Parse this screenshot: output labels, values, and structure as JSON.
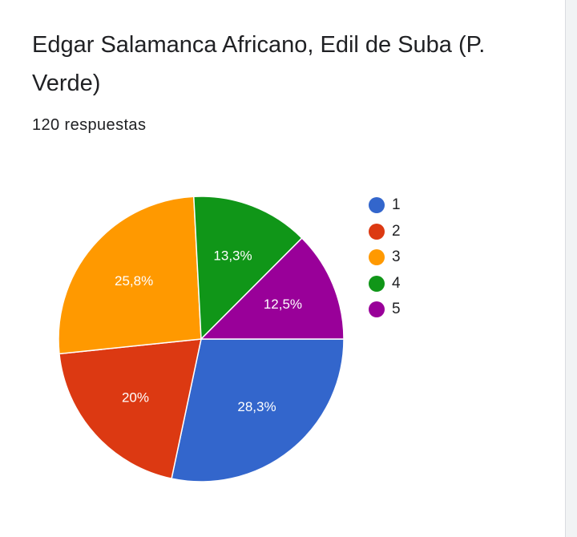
{
  "card": {
    "title": "Edgar Salamanca Africano, Edil de Suba (P. Verde)",
    "response_count": "120 respuestas"
  },
  "chart_data": {
    "type": "pie",
    "title": "Edgar Salamanca Africano, Edil de Suba (P. Verde)",
    "categories": [
      "1",
      "2",
      "3",
      "4",
      "5"
    ],
    "values": [
      28.3,
      20,
      25.8,
      13.3,
      12.5
    ],
    "labels": [
      "28,3%",
      "20%",
      "25,8%",
      "13,3%",
      "12,5%"
    ],
    "colors": [
      "#3366cc",
      "#dc3912",
      "#ff9900",
      "#109618",
      "#990099"
    ],
    "legend_position": "right"
  }
}
